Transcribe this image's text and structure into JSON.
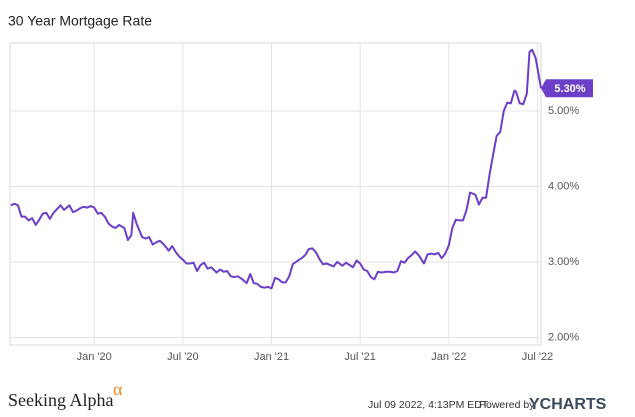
{
  "chart_data": {
    "type": "line",
    "title": "30 Year Mortgage Rate",
    "color": "#6c3fc8",
    "grid": true,
    "x": [
      2019.53,
      2019.55,
      2019.57,
      2019.59,
      2019.61,
      2019.63,
      2019.65,
      2019.67,
      2019.69,
      2019.71,
      2019.73,
      2019.75,
      2019.77,
      2019.79,
      2019.81,
      2019.83,
      2019.86,
      2019.88,
      2019.9,
      2019.92,
      2019.94,
      2019.96,
      2019.98,
      2020.0,
      2020.02,
      2020.04,
      2020.06,
      2020.08,
      2020.1,
      2020.12,
      2020.14,
      2020.17,
      2020.19,
      2020.21,
      2020.22,
      2020.24,
      2020.27,
      2020.29,
      2020.31,
      2020.33,
      2020.35,
      2020.37,
      2020.39,
      2020.42,
      2020.44,
      2020.46,
      2020.48,
      2020.5,
      2020.52,
      2020.54,
      2020.56,
      2020.58,
      2020.6,
      2020.62,
      2020.64,
      2020.66,
      2020.69,
      2020.71,
      2020.73,
      2020.75,
      2020.77,
      2020.79,
      2020.81,
      2020.83,
      2020.86,
      2020.88,
      2020.9,
      2020.92,
      2020.94,
      2020.96,
      2020.98,
      2021.0,
      2021.02,
      2021.04,
      2021.06,
      2021.08,
      2021.1,
      2021.12,
      2021.15,
      2021.17,
      2021.19,
      2021.21,
      2021.23,
      2021.25,
      2021.27,
      2021.29,
      2021.31,
      2021.33,
      2021.35,
      2021.37,
      2021.4,
      2021.42,
      2021.44,
      2021.46,
      2021.48,
      2021.5,
      2021.52,
      2021.54,
      2021.56,
      2021.58,
      2021.6,
      2021.62,
      2021.65,
      2021.67,
      2021.69,
      2021.71,
      2021.73,
      2021.75,
      2021.77,
      2021.79,
      2021.81,
      2021.83,
      2021.86,
      2021.88,
      2021.9,
      2021.92,
      2021.94,
      2021.96,
      2021.98,
      2022.0,
      2022.02,
      2022.04,
      2022.06,
      2022.08,
      2022.1,
      2022.12,
      2022.15,
      2022.17,
      2022.19,
      2022.21,
      2022.23,
      2022.25,
      2022.27,
      2022.29,
      2022.31,
      2022.33,
      2022.35,
      2022.37,
      2022.38,
      2022.4,
      2022.42,
      2022.44,
      2022.455,
      2022.47,
      2022.49,
      2022.52
    ],
    "values": [
      3.75,
      3.77,
      3.75,
      3.6,
      3.6,
      3.55,
      3.58,
      3.49,
      3.56,
      3.64,
      3.65,
      3.57,
      3.65,
      3.7,
      3.75,
      3.69,
      3.75,
      3.66,
      3.68,
      3.71,
      3.73,
      3.72,
      3.74,
      3.72,
      3.64,
      3.65,
      3.6,
      3.51,
      3.47,
      3.45,
      3.49,
      3.45,
      3.29,
      3.36,
      3.65,
      3.5,
      3.33,
      3.31,
      3.33,
      3.23,
      3.26,
      3.28,
      3.24,
      3.15,
      3.21,
      3.13,
      3.07,
      3.03,
      2.98,
      2.98,
      2.99,
      2.88,
      2.96,
      2.99,
      2.91,
      2.93,
      2.86,
      2.9,
      2.87,
      2.88,
      2.81,
      2.8,
      2.81,
      2.78,
      2.72,
      2.84,
      2.72,
      2.71,
      2.67,
      2.66,
      2.67,
      2.65,
      2.79,
      2.77,
      2.73,
      2.73,
      2.81,
      2.97,
      3.02,
      3.05,
      3.09,
      3.17,
      3.18,
      3.13,
      3.04,
      2.97,
      2.98,
      2.96,
      2.94,
      3.0,
      2.95,
      2.99,
      2.96,
      2.93,
      3.02,
      2.98,
      2.9,
      2.88,
      2.8,
      2.77,
      2.87,
      2.86,
      2.87,
      2.87,
      2.86,
      2.88,
      3.01,
      2.99,
      3.05,
      3.09,
      3.14,
      3.09,
      2.98,
      3.1,
      3.11,
      3.1,
      3.12,
      3.05,
      3.11,
      3.22,
      3.45,
      3.56,
      3.55,
      3.55,
      3.69,
      3.92,
      3.89,
      3.76,
      3.85,
      3.85,
      4.16,
      4.42,
      4.67,
      4.72,
      5.0,
      5.11,
      5.1,
      5.27,
      5.25,
      5.1,
      5.09,
      5.23,
      5.78,
      5.81,
      5.7,
      5.3
    ],
    "value_labels": [
      null,
      null,
      null,
      null,
      null,
      null,
      null,
      null,
      null,
      null,
      null,
      null,
      null,
      null,
      null,
      null,
      null,
      null,
      null,
      null,
      null,
      null,
      null,
      null,
      null,
      null,
      null,
      null,
      null,
      null,
      null,
      null,
      null,
      null,
      null,
      null,
      null,
      null,
      null,
      null,
      null,
      null,
      null,
      null,
      null,
      null,
      null,
      null,
      null,
      null,
      null,
      null,
      null,
      null,
      null,
      null,
      null,
      null,
      null,
      null,
      null,
      null,
      null,
      null,
      null,
      null,
      null,
      null,
      null,
      null,
      null,
      null,
      null,
      null,
      null,
      null,
      null,
      null,
      null,
      null,
      null,
      null,
      null,
      null,
      null,
      null,
      null,
      null,
      null,
      null,
      null,
      null,
      null,
      null,
      null,
      null,
      null,
      null,
      null,
      null,
      null,
      null,
      null,
      null,
      null,
      null,
      null,
      null,
      null,
      null,
      null,
      null,
      null,
      null,
      null,
      null,
      null,
      null,
      null,
      null,
      null,
      null,
      null,
      null,
      null,
      null,
      null,
      null,
      null,
      null,
      null,
      null,
      null,
      null,
      null,
      null,
      null,
      null,
      null,
      null,
      null,
      null,
      null,
      null,
      null,
      "5.30%"
    ],
    "xlim": [
      2019.525,
      2022.52
    ],
    "xticks": [
      {
        "value": 2020.0,
        "label": "Jan '20"
      },
      {
        "value": 2020.5,
        "label": "Jul '20"
      },
      {
        "value": 2021.0,
        "label": "Jan '21"
      },
      {
        "value": 2021.5,
        "label": "Jul '21"
      },
      {
        "value": 2022.0,
        "label": "Jan '22"
      },
      {
        "value": 2022.5,
        "label": "Jul '22"
      }
    ],
    "ylim": [
      1.9,
      5.9
    ],
    "yticks": [
      {
        "value": 2,
        "label": "2.00%"
      },
      {
        "value": 3,
        "label": "3.00%"
      },
      {
        "value": 4,
        "label": "4.00%"
      },
      {
        "value": 5,
        "label": "5.00%"
      }
    ]
  },
  "branding": {
    "logo": "Seeking Alpha",
    "logo_mark": "α"
  },
  "footer": {
    "timestamp": "Jul 09 2022, 4:13PM EDT.",
    "powered_by": "Powered by",
    "provider": "YCHARTS"
  }
}
